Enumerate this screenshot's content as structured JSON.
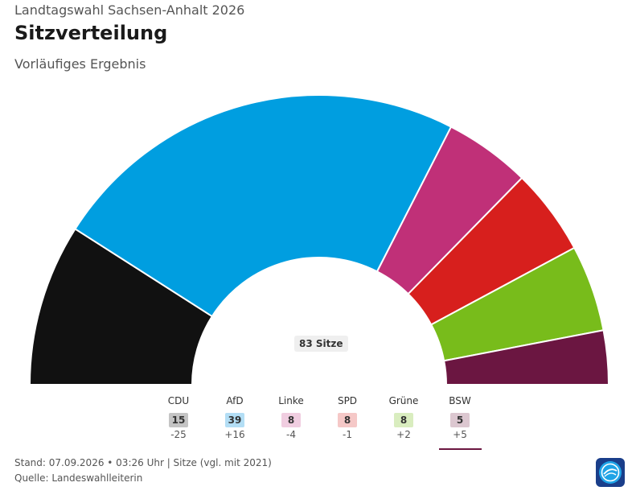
{
  "header": {
    "kicker": "Landtagswahl Sachsen-Anhalt 2026",
    "title": "Sitzverteilung",
    "subtitle": "Vorläufiges Ergebnis"
  },
  "chart_data": {
    "type": "pie",
    "variant": "half-donut",
    "title": "Sitzverteilung",
    "subtitle": "Vorläufiges Ergebnis",
    "total_label": "83 Sitze",
    "total_seats": 83,
    "categories": [
      "CDU",
      "AfD",
      "Linke",
      "SPD",
      "Grüne",
      "BSW"
    ],
    "values": [
      15,
      39,
      8,
      8,
      8,
      5
    ],
    "changes": [
      "-25",
      "+16",
      "-4",
      "-1",
      "+2",
      "+5"
    ],
    "colors": [
      "#111111",
      "#009ee0",
      "#c03078",
      "#d71f1d",
      "#78bc1b",
      "#6b1641"
    ],
    "badge_colors": [
      "#c4c4c4",
      "#b3def5",
      "#f0cde0",
      "#f5c8c7",
      "#d9edbf",
      "#dcc7d0"
    ],
    "highlighted": "BSW",
    "legend_position": "bottom"
  },
  "footer": {
    "line1": "Stand: 07.09.2026 • 03:26 Uhr | Sitze (vgl. mit 2021)",
    "line2": "Quelle: Landeswahlleiterin"
  },
  "logo": {
    "icon": "tagesschau-logo-icon",
    "color": "#1a3e8a"
  }
}
